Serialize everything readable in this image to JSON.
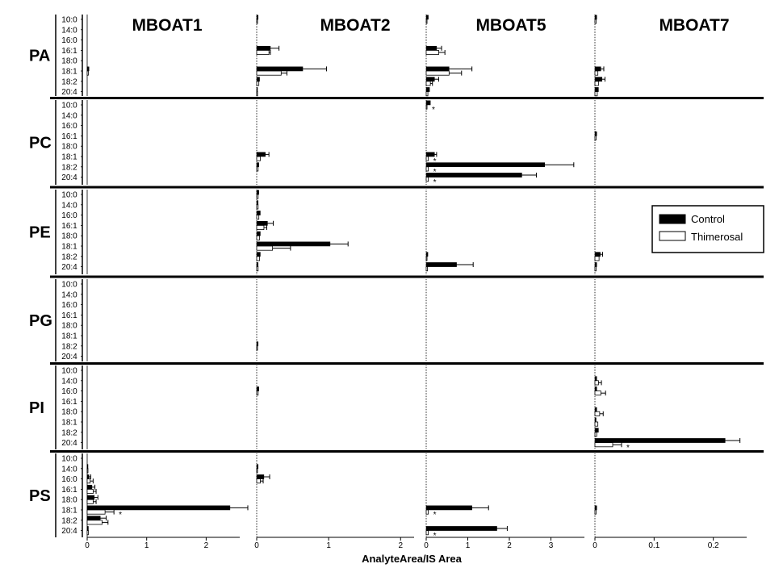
{
  "chart_data": {
    "type": "bar",
    "orientation": "horizontal",
    "title": "",
    "xlabel": "AnalyteArea/IS Area",
    "columns": [
      {
        "name": "MBOAT1",
        "xlim": [
          0,
          2.7
        ],
        "ticks": [
          0,
          1,
          2
        ]
      },
      {
        "name": "MBOAT2",
        "xlim": [
          0,
          2.3
        ],
        "ticks": [
          0,
          1,
          2
        ]
      },
      {
        "name": "MBOAT5",
        "xlim": [
          0,
          4.0
        ],
        "ticks": [
          0,
          1,
          2,
          3
        ]
      },
      {
        "name": "MBOAT7",
        "xlim": [
          0,
          0.27
        ],
        "ticks": [
          0,
          0.1,
          0.2
        ],
        "tick_labels": [
          "0",
          "0.1",
          "0.2"
        ]
      }
    ],
    "rows": [
      "PA",
      "PC",
      "PE",
      "PG",
      "PI",
      "PS"
    ],
    "categories": [
      "10:0",
      "14:0",
      "16:0",
      "16:1",
      "18:0",
      "18:1",
      "18:2",
      "20:4"
    ],
    "series": [
      {
        "name": "Control",
        "color": "#000000"
      },
      {
        "name": "Thimerosal",
        "color": "#ffffff"
      }
    ],
    "legend": {
      "placement": "right",
      "entries": [
        "Control",
        "Thimerosal"
      ]
    },
    "panels": [
      {
        "row": "PA",
        "column": "MBOAT1",
        "bars": [
          {
            "category": "18:1",
            "control": 0.03,
            "thimerosal": 0.02
          }
        ]
      },
      {
        "row": "PA",
        "column": "MBOAT2",
        "bars": [
          {
            "category": "10:0",
            "control": 0.02,
            "thimerosal": 0.01
          },
          {
            "category": "16:1",
            "control": 0.19,
            "control_err": 0.12,
            "thimerosal": 0.17,
            "thimerosal_err": 0.02
          },
          {
            "category": "18:1",
            "control": 0.64,
            "control_err": 0.33,
            "thimerosal": 0.34,
            "thimerosal_err": 0.08
          },
          {
            "category": "18:2",
            "control": 0.04,
            "thimerosal": 0.03
          },
          {
            "category": "20:4",
            "control": 0.01,
            "thimerosal": 0.01
          }
        ]
      },
      {
        "row": "PA",
        "column": "MBOAT5",
        "bars": [
          {
            "category": "10:0",
            "control": 0.05,
            "thimerosal": 0.02
          },
          {
            "category": "16:1",
            "control": 0.25,
            "control_err": 0.12,
            "thimerosal": 0.3,
            "thimerosal_err": 0.15
          },
          {
            "category": "18:1",
            "control": 0.55,
            "control_err": 0.55,
            "thimerosal": 0.55,
            "thimerosal_err": 0.3
          },
          {
            "category": "18:2",
            "control": 0.2,
            "control_err": 0.1,
            "thimerosal": 0.1,
            "thimerosal_err": 0.05
          },
          {
            "category": "20:4",
            "control": 0.08,
            "thimerosal": 0.04
          }
        ]
      },
      {
        "row": "PA",
        "column": "MBOAT7",
        "bars": [
          {
            "category": "10:0",
            "control": 0.003,
            "thimerosal": 0.002
          },
          {
            "category": "18:1",
            "control": 0.01,
            "control_err": 0.005,
            "thimerosal": 0.005
          },
          {
            "category": "18:2",
            "control": 0.012,
            "control_err": 0.005,
            "thimerosal": 0.006
          },
          {
            "category": "20:4",
            "control": 0.006,
            "thimerosal": 0.004
          }
        ]
      },
      {
        "row": "PC",
        "column": "MBOAT2",
        "bars": [
          {
            "category": "18:1",
            "control": 0.12,
            "control_err": 0.05,
            "thimerosal": 0.05
          },
          {
            "category": "18:2",
            "control": 0.03,
            "thimerosal": 0.02
          }
        ]
      },
      {
        "row": "PC",
        "column": "MBOAT5",
        "bars": [
          {
            "category": "10:0",
            "control": 0.1,
            "thimerosal": 0.02,
            "mark": "*"
          },
          {
            "category": "18:1",
            "control": 0.2,
            "control_err": 0.05,
            "thimerosal": 0.05,
            "mark": "*"
          },
          {
            "category": "18:2",
            "control": 2.85,
            "control_err": 0.7,
            "thimerosal": 0.05,
            "mark": "*"
          },
          {
            "category": "20:4",
            "control": 2.3,
            "control_err": 0.35,
            "thimerosal": 0.05,
            "mark": "*"
          }
        ]
      },
      {
        "row": "PC",
        "column": "MBOAT7",
        "bars": [
          {
            "category": "16:1",
            "control": 0.003,
            "thimerosal": 0.002
          }
        ]
      },
      {
        "row": "PE",
        "column": "MBOAT2",
        "bars": [
          {
            "category": "10:0",
            "control": 0.03,
            "thimerosal": 0.02
          },
          {
            "category": "14:0",
            "control": 0.02,
            "thimerosal": 0.02
          },
          {
            "category": "16:0",
            "control": 0.05,
            "thimerosal": 0.03
          },
          {
            "category": "16:1",
            "control": 0.15,
            "control_err": 0.08,
            "thimerosal": 0.1,
            "thimerosal_err": 0.04
          },
          {
            "category": "18:0",
            "control": 0.05,
            "thimerosal": 0.04
          },
          {
            "category": "18:1",
            "control": 1.02,
            "control_err": 0.25,
            "thimerosal": 0.22,
            "thimerosal_err": 0.25
          },
          {
            "category": "18:2",
            "control": 0.05,
            "thimerosal": 0.04
          },
          {
            "category": "20:4",
            "control": 0.02,
            "thimerosal": 0.02
          }
        ]
      },
      {
        "row": "PE",
        "column": "MBOAT5",
        "bars": [
          {
            "category": "18:2",
            "control": 0.04,
            "thimerosal": 0.02
          },
          {
            "category": "20:4",
            "control": 0.73,
            "control_err": 0.4,
            "thimerosal": 0.03
          }
        ]
      },
      {
        "row": "PE",
        "column": "MBOAT7",
        "bars": [
          {
            "category": "18:2",
            "control": 0.009,
            "control_err": 0.004,
            "thimerosal": 0.007
          },
          {
            "category": "20:4",
            "control": 0.003,
            "thimerosal": 0.002
          }
        ]
      },
      {
        "row": "PG",
        "column": "MBOAT2",
        "bars": [
          {
            "category": "18:2",
            "control": 0.02,
            "thimerosal": 0.01
          }
        ]
      },
      {
        "row": "PI",
        "column": "MBOAT2",
        "bars": [
          {
            "category": "16:0",
            "control": 0.03,
            "thimerosal": 0.02
          }
        ]
      },
      {
        "row": "PI",
        "column": "MBOAT7",
        "bars": [
          {
            "category": "14:0",
            "control": 0.003,
            "thimerosal": 0.006,
            "thimerosal_err": 0.005
          },
          {
            "category": "16:0",
            "control": 0.003,
            "thimerosal": 0.01,
            "thimerosal_err": 0.008
          },
          {
            "category": "18:0",
            "control": 0.003,
            "thimerosal": 0.008,
            "thimerosal_err": 0.006
          },
          {
            "category": "18:1",
            "control": 0.002,
            "thimerosal": 0.005
          },
          {
            "category": "18:2",
            "control": 0.006,
            "thimerosal": 0.003
          },
          {
            "category": "20:4",
            "control": 0.22,
            "control_err": 0.025,
            "thimerosal": 0.03,
            "thimerosal_err": 0.015,
            "mark": "*"
          }
        ]
      },
      {
        "row": "PS",
        "column": "MBOAT1",
        "bars": [
          {
            "category": "14:0",
            "control": 0.01,
            "thimerosal": 0.01
          },
          {
            "category": "16:0",
            "control": 0.03,
            "control_err": 0.03,
            "thimerosal": 0.05,
            "thimerosal_err": 0.05
          },
          {
            "category": "16:1",
            "control": 0.08,
            "control_err": 0.05,
            "thimerosal": 0.1,
            "thimerosal_err": 0.05
          },
          {
            "category": "18:0",
            "control": 0.12,
            "control_err": 0.06,
            "thimerosal": 0.1,
            "thimerosal_err": 0.05
          },
          {
            "category": "18:1",
            "control": 2.4,
            "control_err": 0.3,
            "thimerosal": 0.3,
            "thimerosal_err": 0.15,
            "mark": "*"
          },
          {
            "category": "18:2",
            "control": 0.22,
            "control_err": 0.1,
            "thimerosal": 0.25,
            "thimerosal_err": 0.1
          },
          {
            "category": "20:4",
            "control": 0.02,
            "thimerosal": 0.02
          }
        ]
      },
      {
        "row": "PS",
        "column": "MBOAT2",
        "bars": [
          {
            "category": "14:0",
            "control": 0.02,
            "thimerosal": 0.01
          },
          {
            "category": "16:0",
            "control": 0.1,
            "control_err": 0.08,
            "thimerosal": 0.05,
            "thimerosal_err": 0.04
          }
        ]
      },
      {
        "row": "PS",
        "column": "MBOAT5",
        "bars": [
          {
            "category": "18:1",
            "control": 1.1,
            "control_err": 0.4,
            "thimerosal": 0.05,
            "mark": "*"
          },
          {
            "category": "20:4",
            "control": 1.7,
            "control_err": 0.25,
            "thimerosal": 0.05,
            "mark": "*"
          }
        ]
      },
      {
        "row": "PS",
        "column": "MBOAT7",
        "bars": [
          {
            "category": "18:1",
            "control": 0.003,
            "thimerosal": 0.002
          }
        ]
      }
    ]
  }
}
